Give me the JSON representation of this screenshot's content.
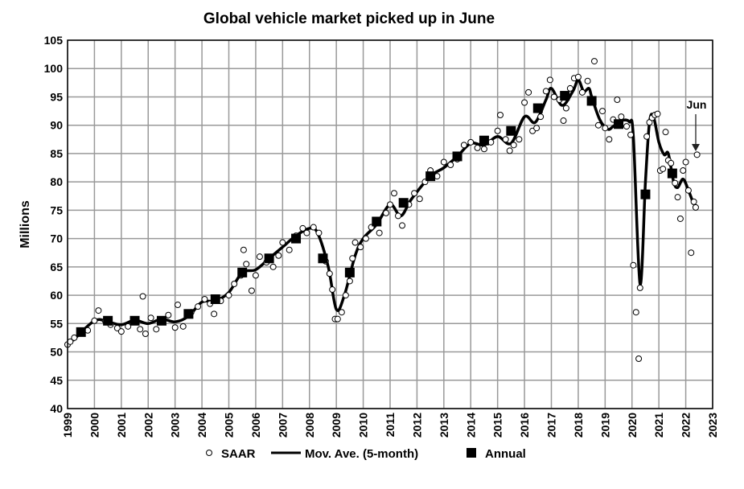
{
  "chart_data": {
    "type": "line",
    "title": "Global vehicle market picked up in June",
    "xlabel": "",
    "ylabel": "Millions",
    "xlim": [
      1999,
      2023
    ],
    "ylim": [
      40,
      105
    ],
    "grid": true,
    "x_ticks": [
      "1999",
      "2000",
      "2001",
      "2002",
      "2003",
      "2004",
      "2005",
      "2006",
      "2007",
      "2008",
      "2009",
      "2010",
      "2011",
      "2012",
      "2013",
      "2014",
      "2015",
      "2016",
      "2017",
      "2018",
      "2019",
      "2020",
      "2021",
      "2022",
      "2023"
    ],
    "y_ticks": [
      "40",
      "45",
      "50",
      "55",
      "60",
      "65",
      "70",
      "75",
      "80",
      "85",
      "90",
      "95",
      "100",
      "105"
    ],
    "legend": {
      "placement": "bottom",
      "entries": [
        "SAAR",
        "Mov. Ave. (5-month)",
        "Annual"
      ]
    },
    "annotation": {
      "text": "Jun",
      "x": 2022.42,
      "y": 84.8
    },
    "series": [
      {
        "name": "SAAR",
        "kind": "scatter",
        "points": [
          [
            1999.0,
            51.3
          ],
          [
            1999.1,
            51.8
          ],
          [
            1999.25,
            52.5
          ],
          [
            1999.5,
            53.3
          ],
          [
            1999.75,
            53.8
          ],
          [
            2000.0,
            55.5
          ],
          [
            2000.15,
            57.3
          ],
          [
            2000.4,
            55.5
          ],
          [
            2000.6,
            54.8
          ],
          [
            2000.85,
            54.2
          ],
          [
            2001.0,
            53.6
          ],
          [
            2001.25,
            54.5
          ],
          [
            2001.5,
            55.3
          ],
          [
            2001.7,
            54.0
          ],
          [
            2001.8,
            59.8
          ],
          [
            2001.9,
            53.2
          ],
          [
            2002.1,
            56.0
          ],
          [
            2002.3,
            54.0
          ],
          [
            2002.5,
            55.5
          ],
          [
            2002.75,
            56.5
          ],
          [
            2003.0,
            54.3
          ],
          [
            2003.1,
            58.3
          ],
          [
            2003.3,
            54.5
          ],
          [
            2003.6,
            57.0
          ],
          [
            2003.85,
            58.0
          ],
          [
            2004.1,
            59.3
          ],
          [
            2004.3,
            58.5
          ],
          [
            2004.45,
            56.7
          ],
          [
            2004.7,
            59.0
          ],
          [
            2005.0,
            60.0
          ],
          [
            2005.2,
            62.0
          ],
          [
            2005.45,
            63.5
          ],
          [
            2005.55,
            68.0
          ],
          [
            2005.65,
            65.5
          ],
          [
            2005.85,
            60.8
          ],
          [
            2006.0,
            63.5
          ],
          [
            2006.15,
            66.8
          ],
          [
            2006.4,
            65.8
          ],
          [
            2006.65,
            65.0
          ],
          [
            2006.85,
            67.0
          ],
          [
            2007.0,
            69.3
          ],
          [
            2007.25,
            68.0
          ],
          [
            2007.5,
            70.5
          ],
          [
            2007.75,
            71.8
          ],
          [
            2007.9,
            71.0
          ],
          [
            2008.15,
            72.0
          ],
          [
            2008.35,
            71.0
          ],
          [
            2008.6,
            66.0
          ],
          [
            2008.75,
            63.8
          ],
          [
            2008.85,
            61.0
          ],
          [
            2008.95,
            55.8
          ],
          [
            2009.05,
            55.8
          ],
          [
            2009.2,
            57.0
          ],
          [
            2009.35,
            60.0
          ],
          [
            2009.5,
            62.5
          ],
          [
            2009.6,
            66.5
          ],
          [
            2009.7,
            69.3
          ],
          [
            2009.9,
            68.5
          ],
          [
            2010.1,
            70.0
          ],
          [
            2010.3,
            72.0
          ],
          [
            2010.6,
            71.0
          ],
          [
            2010.85,
            74.5
          ],
          [
            2011.0,
            76.0
          ],
          [
            2011.15,
            78.0
          ],
          [
            2011.3,
            74.0
          ],
          [
            2011.45,
            72.3
          ],
          [
            2011.7,
            76.0
          ],
          [
            2011.9,
            78.0
          ],
          [
            2012.1,
            77.0
          ],
          [
            2012.3,
            80.0
          ],
          [
            2012.5,
            82.0
          ],
          [
            2012.75,
            81.0
          ],
          [
            2013.0,
            83.5
          ],
          [
            2013.25,
            83.0
          ],
          [
            2013.5,
            84.0
          ],
          [
            2013.75,
            86.5
          ],
          [
            2014.0,
            87.0
          ],
          [
            2014.25,
            86.0
          ],
          [
            2014.5,
            85.8
          ],
          [
            2014.75,
            87.0
          ],
          [
            2015.0,
            89.0
          ],
          [
            2015.1,
            91.8
          ],
          [
            2015.3,
            87.5
          ],
          [
            2015.45,
            85.5
          ],
          [
            2015.6,
            86.5
          ],
          [
            2015.8,
            87.5
          ],
          [
            2016.0,
            94.0
          ],
          [
            2016.15,
            95.8
          ],
          [
            2016.3,
            89.0
          ],
          [
            2016.45,
            89.5
          ],
          [
            2016.6,
            91.5
          ],
          [
            2016.8,
            96.0
          ],
          [
            2016.95,
            98.0
          ],
          [
            2017.1,
            95.0
          ],
          [
            2017.3,
            94.5
          ],
          [
            2017.45,
            90.8
          ],
          [
            2017.55,
            93.0
          ],
          [
            2017.7,
            96.5
          ],
          [
            2017.85,
            98.3
          ],
          [
            2018.0,
            98.5
          ],
          [
            2018.15,
            95.8
          ],
          [
            2018.35,
            97.8
          ],
          [
            2018.45,
            94.0
          ],
          [
            2018.6,
            101.3
          ],
          [
            2018.75,
            90.0
          ],
          [
            2018.9,
            92.5
          ],
          [
            2019.0,
            89.5
          ],
          [
            2019.15,
            87.5
          ],
          [
            2019.3,
            91.0
          ],
          [
            2019.45,
            94.5
          ],
          [
            2019.6,
            91.5
          ],
          [
            2019.8,
            89.8
          ],
          [
            2019.95,
            88.3
          ],
          [
            2020.05,
            65.3
          ],
          [
            2020.15,
            57.0
          ],
          [
            2020.25,
            48.8
          ],
          [
            2020.3,
            61.3
          ],
          [
            2020.55,
            88.0
          ],
          [
            2020.65,
            90.5
          ],
          [
            2020.75,
            91.3
          ],
          [
            2020.85,
            91.8
          ],
          [
            2020.95,
            92.0
          ],
          [
            2021.05,
            82.0
          ],
          [
            2021.15,
            82.3
          ],
          [
            2021.25,
            88.8
          ],
          [
            2021.35,
            83.8
          ],
          [
            2021.45,
            83.3
          ],
          [
            2021.6,
            79.8
          ],
          [
            2021.7,
            77.3
          ],
          [
            2021.8,
            73.5
          ],
          [
            2021.9,
            82.0
          ],
          [
            2022.0,
            83.5
          ],
          [
            2022.1,
            78.5
          ],
          [
            2022.2,
            67.5
          ],
          [
            2022.3,
            76.5
          ],
          [
            2022.37,
            75.5
          ],
          [
            2022.42,
            84.8
          ]
        ]
      },
      {
        "name": "Mov. Ave. (5-month)",
        "kind": "line",
        "points": [
          [
            1999.2,
            52
          ],
          [
            2000,
            55.5
          ],
          [
            2000.5,
            55.3
          ],
          [
            2001,
            54.8
          ],
          [
            2001.5,
            55.6
          ],
          [
            2002,
            55
          ],
          [
            2002.5,
            55.8
          ],
          [
            2003,
            55.3
          ],
          [
            2003.5,
            56.3
          ],
          [
            2004,
            58.8
          ],
          [
            2004.5,
            59
          ],
          [
            2005,
            60.5
          ],
          [
            2005.5,
            64
          ],
          [
            2006,
            64.5
          ],
          [
            2006.5,
            66.5
          ],
          [
            2007,
            68.5
          ],
          [
            2007.5,
            70.5
          ],
          [
            2008,
            71.8
          ],
          [
            2008.3,
            71
          ],
          [
            2008.7,
            65
          ],
          [
            2009.0,
            57.5
          ],
          [
            2009.3,
            60
          ],
          [
            2009.7,
            67
          ],
          [
            2010,
            70
          ],
          [
            2010.5,
            72.5
          ],
          [
            2011,
            76
          ],
          [
            2011.4,
            74
          ],
          [
            2011.8,
            77
          ],
          [
            2012.5,
            81
          ],
          [
            2013,
            82.5
          ],
          [
            2013.5,
            84.5
          ],
          [
            2014,
            86.8
          ],
          [
            2014.5,
            86.5
          ],
          [
            2015,
            88
          ],
          [
            2015.5,
            86.8
          ],
          [
            2016,
            91.5
          ],
          [
            2016.4,
            90.5
          ],
          [
            2016.8,
            94.5
          ],
          [
            2017,
            96.5
          ],
          [
            2017.4,
            93.5
          ],
          [
            2017.8,
            96
          ],
          [
            2018.0,
            98
          ],
          [
            2018.2,
            96
          ],
          [
            2018.4,
            96.5
          ],
          [
            2018.5,
            95
          ],
          [
            2018.8,
            91
          ],
          [
            2019.1,
            89.3
          ],
          [
            2019.3,
            89.8
          ],
          [
            2019.6,
            90.8
          ],
          [
            2019.9,
            90.6
          ],
          [
            2020.05,
            88
          ],
          [
            2020.3,
            62
          ],
          [
            2020.5,
            80
          ],
          [
            2020.65,
            90.5
          ],
          [
            2020.8,
            91.5
          ],
          [
            2021.0,
            87
          ],
          [
            2021.2,
            84.8
          ],
          [
            2021.35,
            85
          ],
          [
            2021.55,
            80
          ],
          [
            2021.7,
            79
          ],
          [
            2021.9,
            80.5
          ],
          [
            2022.1,
            78.5
          ],
          [
            2022.3,
            76
          ]
        ]
      },
      {
        "name": "Annual",
        "kind": "marker",
        "points": [
          [
            1999.5,
            53.5
          ],
          [
            2000.5,
            55.5
          ],
          [
            2001.5,
            55.5
          ],
          [
            2002.5,
            55.5
          ],
          [
            2003.5,
            56.7
          ],
          [
            2004.5,
            59.3
          ],
          [
            2005.5,
            64.0
          ],
          [
            2006.5,
            66.5
          ],
          [
            2007.5,
            70.0
          ],
          [
            2008.5,
            66.5
          ],
          [
            2009.5,
            64.0
          ],
          [
            2010.5,
            73.0
          ],
          [
            2011.5,
            76.3
          ],
          [
            2012.5,
            81.0
          ],
          [
            2013.5,
            84.5
          ],
          [
            2014.5,
            87.3
          ],
          [
            2015.5,
            89.0
          ],
          [
            2016.5,
            93.0
          ],
          [
            2017.5,
            95.2
          ],
          [
            2018.5,
            94.3
          ],
          [
            2019.5,
            90.2
          ],
          [
            2020.5,
            77.8
          ],
          [
            2021.5,
            81.5
          ]
        ]
      }
    ]
  }
}
